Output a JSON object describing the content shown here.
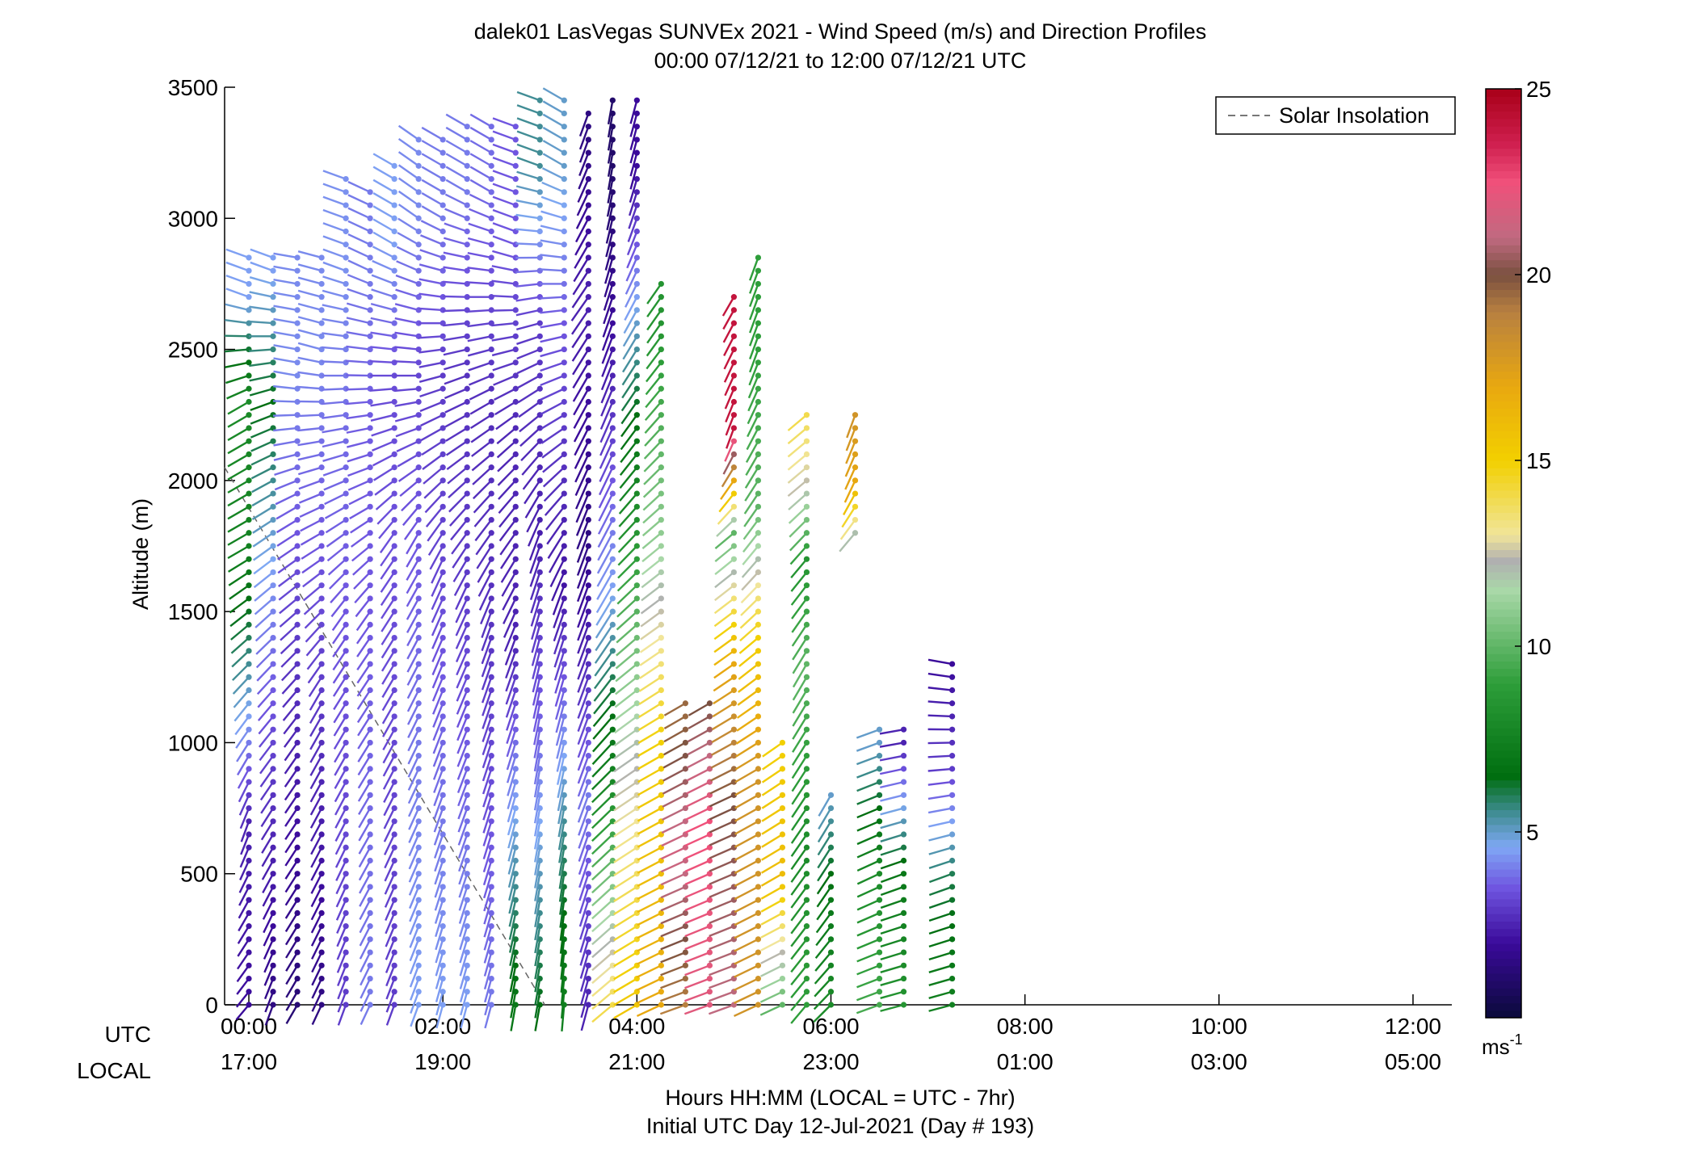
{
  "chart_data": {
    "type": "wind-barb-profile",
    "title": "dalek01 LasVegas SUNVEx 2021 - Wind Speed (m/s) and Direction Profiles",
    "subtitle": "00:00 07/12/21 to 12:00 07/12/21  UTC",
    "ylabel": "Altitude (m)",
    "xlabel_line1": "Hours HH:MM  (LOCAL = UTC - 7hr)",
    "xlabel_line2": "Initial UTC Day 12-Jul-2021 (Day # 193)",
    "xlim": [
      -0.25,
      12.4
    ],
    "ylim": [
      0,
      3500
    ],
    "y_ticks": [
      0,
      500,
      1000,
      1500,
      2000,
      2500,
      3000,
      3500
    ],
    "x_ticks_utc": [
      "00:00",
      "02:00",
      "04:00",
      "06:00",
      "08:00",
      "10:00",
      "12:00"
    ],
    "x_ticks_local": [
      "17:00",
      "19:00",
      "21:00",
      "23:00",
      "01:00",
      "03:00",
      "05:00"
    ],
    "x_ticks_hours": [
      0,
      2,
      4,
      6,
      8,
      10,
      12
    ],
    "row_label_utc": "UTC",
    "row_label_local": "LOCAL",
    "legend_label": "Solar Insolation",
    "legend_position": "top-right",
    "solar_insolation_line": [
      [
        -0.25,
        2050
      ],
      [
        3.05,
        0
      ]
    ],
    "colorbar": {
      "min": 0,
      "max": 25,
      "ticks": [
        5,
        10,
        15,
        20,
        25
      ],
      "unit_label": "ms",
      "unit_exponent": "-1",
      "stops": [
        [
          0,
          "#0a0a3a"
        ],
        [
          2,
          "#3a0a9a"
        ],
        [
          3.5,
          "#6f55e0"
        ],
        [
          4.6,
          "#7fa8f5"
        ],
        [
          5.6,
          "#3a8a8a"
        ],
        [
          6.5,
          "#006e10"
        ],
        [
          9,
          "#2e9e3a"
        ],
        [
          11.5,
          "#a9d8a8"
        ],
        [
          12.3,
          "#b0b0b0"
        ],
        [
          13,
          "#f1e59a"
        ],
        [
          15,
          "#f2d000"
        ],
        [
          17,
          "#e8a810"
        ],
        [
          19,
          "#b88040"
        ],
        [
          20,
          "#7a5040"
        ],
        [
          21,
          "#c06a80"
        ],
        [
          22.5,
          "#f0507a"
        ],
        [
          23.5,
          "#d02050"
        ],
        [
          25,
          "#a80018"
        ]
      ]
    },
    "profiles": [
      {
        "t": 0.0,
        "top": 2880,
        "segments": [
          [
            0,
            2,
            220,
            0.8
          ],
          [
            700,
            2.5,
            200,
            0.9
          ],
          [
            1300,
            5.5,
            225,
            0.95
          ],
          [
            1750,
            7.5,
            240,
            1.0
          ],
          [
            2300,
            8,
            240,
            1.0
          ],
          [
            2700,
            4.5,
            290,
            1.0
          ]
        ]
      },
      {
        "t": 0.25,
        "top": 2880,
        "segments": [
          [
            0,
            1.5,
            200,
            0.9
          ],
          [
            900,
            3,
            215,
            0.9
          ],
          [
            1600,
            4.3,
            230,
            1.0
          ],
          [
            2300,
            6.5,
            250,
            1.0
          ],
          [
            2800,
            4.5,
            290,
            1.0
          ]
        ]
      },
      {
        "t": 0.5,
        "top": 2860,
        "segments": [
          [
            0,
            1.2,
            210,
            0.9
          ],
          [
            1000,
            2.5,
            215,
            0.9
          ],
          [
            1900,
            3.6,
            240,
            1.0
          ],
          [
            2400,
            4.2,
            280,
            1.0
          ]
        ]
      },
      {
        "t": 0.75,
        "top": 2880,
        "segments": [
          [
            0,
            1.5,
            205,
            0.9
          ],
          [
            1200,
            3,
            210,
            0.95
          ],
          [
            2000,
            3.7,
            250,
            1.0
          ],
          [
            2500,
            4.2,
            285,
            1.0
          ]
        ]
      },
      {
        "t": 1.0,
        "top": 3160,
        "segments": [
          [
            0,
            3,
            200,
            0.9
          ],
          [
            1500,
            3.5,
            215,
            0.95
          ],
          [
            2200,
            3.8,
            260,
            1.0
          ],
          [
            2800,
            4.3,
            290,
            1.0
          ]
        ]
      },
      {
        "t": 1.25,
        "top": 3110,
        "segments": [
          [
            0,
            4,
            205,
            0.9
          ],
          [
            1500,
            3.5,
            215,
            0.95
          ],
          [
            2300,
            3.6,
            265,
            1.0
          ],
          [
            2800,
            4,
            295,
            1.0
          ]
        ]
      },
      {
        "t": 1.5,
        "top": 3220,
        "segments": [
          [
            0,
            3,
            200,
            0.9
          ],
          [
            1800,
            3.4,
            215,
            1.0
          ],
          [
            2400,
            3.3,
            270,
            1.0
          ],
          [
            2900,
            4.5,
            300,
            1.0
          ]
        ]
      },
      {
        "t": 1.75,
        "top": 3300,
        "segments": [
          [
            0,
            4.5,
            200,
            0.95
          ],
          [
            1800,
            3.5,
            210,
            1.0
          ],
          [
            2400,
            3.2,
            270,
            1.0
          ],
          [
            3000,
            4.2,
            305,
            1.0
          ]
        ]
      },
      {
        "t": 2.0,
        "top": 3310,
        "segments": [
          [
            0,
            4.5,
            195,
            1.0
          ],
          [
            1700,
            3.2,
            205,
            1.1
          ],
          [
            2400,
            3.0,
            255,
            1.0
          ],
          [
            3000,
            4,
            300,
            1.0
          ]
        ]
      },
      {
        "t": 2.25,
        "top": 3390,
        "segments": [
          [
            0,
            4.5,
            195,
            1.0
          ],
          [
            1600,
            3.0,
            205,
            1.1
          ],
          [
            2400,
            2.8,
            250,
            1.0
          ],
          [
            3100,
            4,
            300,
            1.0
          ]
        ]
      },
      {
        "t": 2.5,
        "top": 3390,
        "segments": [
          [
            0,
            4,
            195,
            1.0
          ],
          [
            1500,
            2.8,
            200,
            1.15
          ],
          [
            2300,
            2.7,
            240,
            1.0
          ],
          [
            3100,
            3.8,
            300,
            1.0
          ]
        ]
      },
      {
        "t": 2.75,
        "top": 3390,
        "segments": [
          [
            0,
            7,
            190,
            1.1
          ],
          [
            1400,
            2.5,
            200,
            1.2
          ],
          [
            2200,
            2.6,
            230,
            1.0
          ],
          [
            2900,
            3.5,
            290,
            1.0
          ]
        ]
      },
      {
        "t": 3.0,
        "top": 3480,
        "segments": [
          [
            0,
            6.5,
            190,
            1.1
          ],
          [
            1000,
            3.8,
            190,
            1.2
          ],
          [
            1800,
            2.4,
            200,
            1.2
          ],
          [
            2600,
            3,
            255,
            1.0
          ],
          [
            3200,
            5.5,
            290,
            1.0
          ]
        ]
      },
      {
        "t": 3.25,
        "top": 3480,
        "segments": [
          [
            0,
            7.5,
            185,
            1.1
          ],
          [
            700,
            5.5,
            190,
            1.2
          ],
          [
            1600,
            2.2,
            200,
            1.3
          ],
          [
            2600,
            3.5,
            260,
            1.0
          ],
          [
            3200,
            5,
            300,
            1.0
          ]
        ]
      },
      {
        "t": 3.5,
        "top": 3400,
        "segments": [
          [
            0,
            2.5,
            195,
            1.1
          ],
          [
            800,
            4,
            200,
            1.2
          ],
          [
            1800,
            1.5,
            200,
            1.3
          ],
          [
            2700,
            2.5,
            215,
            1.2
          ],
          [
            3300,
            1.5,
            200,
            1.0
          ]
        ]
      },
      {
        "t": 3.75,
        "top": 3460,
        "segments": [
          [
            0,
            14,
            230,
            1.1
          ],
          [
            900,
            7.5,
            225,
            1.2
          ],
          [
            1600,
            4.5,
            210,
            1.3
          ],
          [
            2600,
            2,
            200,
            1.2
          ],
          [
            3200,
            1,
            190,
            1.0
          ]
        ]
      },
      {
        "t": 4.0,
        "top": 3450,
        "segments": [
          [
            0,
            15.5,
            240,
            1.1
          ],
          [
            1000,
            12,
            235,
            1.15
          ],
          [
            1700,
            9,
            225,
            1.1
          ],
          [
            2600,
            5,
            210,
            1.1
          ],
          [
            3200,
            2,
            195,
            1.0
          ]
        ]
      },
      {
        "t": 4.25,
        "top": 2780,
        "segments": [
          [
            0,
            17,
            245,
            1.1
          ],
          [
            1000,
            15,
            240,
            1.1
          ],
          [
            1800,
            11,
            230,
            1.0
          ],
          [
            2600,
            8.5,
            215,
            1.0
          ]
        ]
      },
      {
        "t": 4.5,
        "top": 1150,
        "segments": [
          [
            0,
            19,
            250,
            1.1
          ],
          [
            600,
            21.5,
            245,
            1.1
          ],
          [
            1100,
            19.5,
            240,
            1.0
          ]
        ]
      },
      {
        "t": 4.75,
        "top": 1150,
        "segments": [
          [
            0,
            22,
            250,
            1.1
          ],
          [
            700,
            22.5,
            245,
            1.1
          ],
          [
            1150,
            20,
            240,
            1.0
          ]
        ]
      },
      {
        "t": 5.0,
        "top": 2700,
        "segments": [
          [
            0,
            21,
            250,
            1.1
          ],
          [
            800,
            20,
            245,
            1.1
          ],
          [
            1300,
            17,
            235,
            1.0
          ],
          [
            1800,
            10,
            230,
            1.0
          ],
          [
            2200,
            24,
            200,
            0.9
          ],
          [
            2700,
            24,
            210,
            0.9
          ]
        ]
      },
      {
        "t": 5.25,
        "top": 2870,
        "segments": [
          [
            0,
            18,
            245,
            1.1
          ],
          [
            900,
            18,
            240,
            1.1
          ],
          [
            1400,
            15,
            230,
            1.0
          ],
          [
            1900,
            10,
            215,
            1.0
          ],
          [
            2500,
            9,
            200,
            1.0
          ]
        ]
      },
      {
        "t": 5.5,
        "top": 1020,
        "segments": [
          [
            0,
            10,
            245,
            1.0
          ],
          [
            500,
            16,
            240,
            1.0
          ],
          [
            1000,
            15,
            235,
            1.0
          ]
        ]
      },
      {
        "t": 5.75,
        "top": 2250,
        "segments": [
          [
            0,
            9,
            220,
            1.0
          ],
          [
            600,
            8,
            215,
            1.1
          ],
          [
            1300,
            10,
            210,
            1.1
          ],
          [
            1700,
            8.5,
            220,
            1.0
          ],
          [
            2000,
            12.5,
            230,
            1.0
          ],
          [
            2250,
            14,
            230,
            1.0
          ]
        ]
      },
      {
        "t": 6.0,
        "top": 820,
        "segments": [
          [
            0,
            8,
            225,
            1.0
          ],
          [
            400,
            7,
            215,
            1.0
          ],
          [
            800,
            5,
            210,
            1.0
          ]
        ]
      },
      {
        "t": 6.25,
        "top": 2250,
        "segments": [
          [
            1800,
            12,
            220,
            1.0
          ],
          [
            2000,
            17,
            205,
            1.0
          ],
          [
            2250,
            18,
            200,
            1.0
          ]
        ]
      },
      {
        "t": 6.5,
        "top": 1070,
        "segments": [
          [
            0,
            9.5,
            250,
            1.0
          ],
          [
            500,
            8,
            245,
            1.0
          ],
          [
            1000,
            5,
            250,
            1.0
          ]
        ]
      },
      {
        "t": 6.75,
        "top": 1090,
        "segments": [
          [
            0,
            8.5,
            255,
            1.0
          ],
          [
            500,
            7,
            250,
            1.0
          ],
          [
            1000,
            2.5,
            260,
            1.0
          ]
        ]
      },
      {
        "t": 7.25,
        "top": 1310,
        "segments": [
          [
            0,
            7.5,
            255,
            1.0
          ],
          [
            500,
            6,
            250,
            1.0
          ],
          [
            900,
            3,
            265,
            1.0
          ],
          [
            1300,
            2,
            280,
            1.0
          ]
        ]
      }
    ]
  }
}
